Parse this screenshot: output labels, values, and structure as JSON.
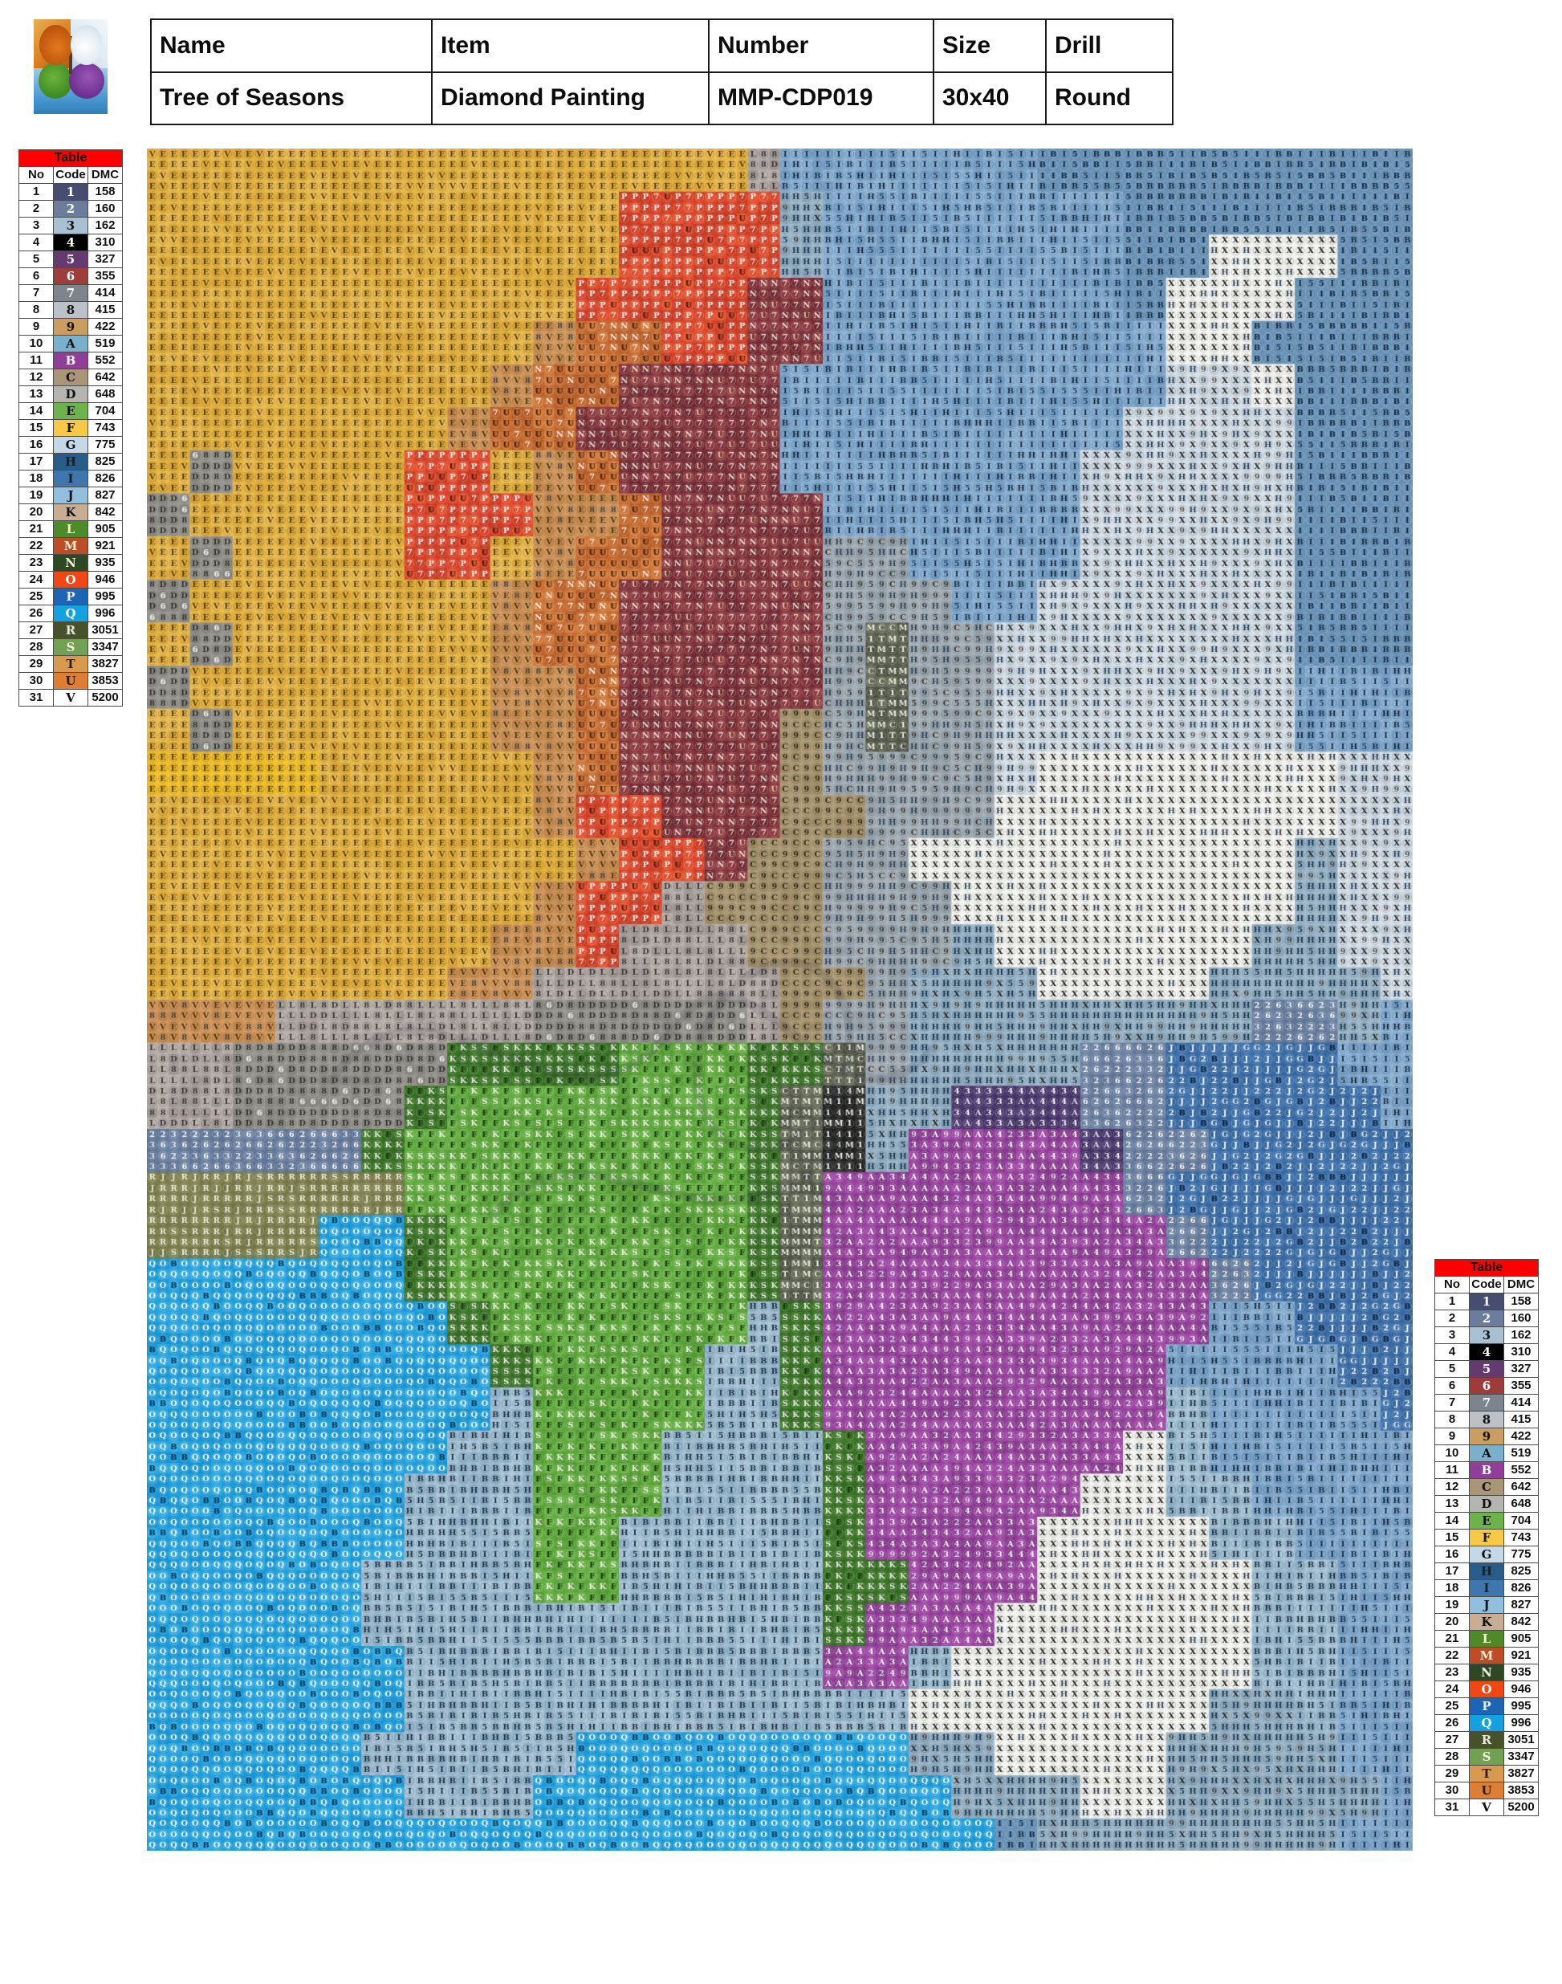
{
  "header": {
    "cells": [
      {
        "label": "Name",
        "value": "Tree of Seasons"
      },
      {
        "label": "Item",
        "value": "Diamond Painting"
      },
      {
        "label": "Number",
        "value": "MMP-CDP019"
      },
      {
        "label": "Size",
        "value": "30x40"
      },
      {
        "label": "Drill",
        "value": "Round"
      }
    ]
  },
  "thumbnail": {
    "description": "four-seasons tree photo thumbnail"
  },
  "legend": {
    "title": "Table",
    "columns": [
      "No",
      "Code",
      "DMC"
    ],
    "rows": [
      {
        "no": 1,
        "code": "1",
        "dmc": "158",
        "bg": "#474D70",
        "fg": "#ffffff"
      },
      {
        "no": 2,
        "code": "2",
        "dmc": "160",
        "bg": "#6C7C9D",
        "fg": "#ffffff"
      },
      {
        "no": 3,
        "code": "3",
        "dmc": "162",
        "bg": "#A9C0D4",
        "fg": "#111111"
      },
      {
        "no": 4,
        "code": "4",
        "dmc": "310",
        "bg": "#000000",
        "fg": "#ffffff"
      },
      {
        "no": 5,
        "code": "5",
        "dmc": "327",
        "bg": "#643A70",
        "fg": "#ffffff"
      },
      {
        "no": 6,
        "code": "6",
        "dmc": "355",
        "bg": "#9E3B3B",
        "fg": "#ffffff"
      },
      {
        "no": 7,
        "code": "7",
        "dmc": "414",
        "bg": "#7E848E",
        "fg": "#ffffff"
      },
      {
        "no": 8,
        "code": "8",
        "dmc": "415",
        "bg": "#BCC1C7",
        "fg": "#111111"
      },
      {
        "no": 9,
        "code": "9",
        "dmc": "422",
        "bg": "#CA9D60",
        "fg": "#111111"
      },
      {
        "no": 10,
        "code": "A",
        "dmc": "519",
        "bg": "#7BB0CD",
        "fg": "#111111"
      },
      {
        "no": 11,
        "code": "B",
        "dmc": "552",
        "bg": "#8F3F98",
        "fg": "#ffffff"
      },
      {
        "no": 12,
        "code": "C",
        "dmc": "642",
        "bg": "#A89677",
        "fg": "#111111"
      },
      {
        "no": 13,
        "code": "D",
        "dmc": "648",
        "bg": "#B4B5B0",
        "fg": "#111111"
      },
      {
        "no": 14,
        "code": "E",
        "dmc": "704",
        "bg": "#6DB34B",
        "fg": "#111111"
      },
      {
        "no": 15,
        "code": "F",
        "dmc": "743",
        "bg": "#F6CA46",
        "fg": "#111111"
      },
      {
        "no": 16,
        "code": "G",
        "dmc": "775",
        "bg": "#C5D8E8",
        "fg": "#111111"
      },
      {
        "no": 17,
        "code": "H",
        "dmc": "825",
        "bg": "#2A5C8A",
        "fg": "#15202b"
      },
      {
        "no": 18,
        "code": "I",
        "dmc": "826",
        "bg": "#3E76AD",
        "fg": "#15202b"
      },
      {
        "no": 19,
        "code": "J",
        "dmc": "827",
        "bg": "#92BFDE",
        "fg": "#111111"
      },
      {
        "no": 20,
        "code": "K",
        "dmc": "842",
        "bg": "#C9AD93",
        "fg": "#111111"
      },
      {
        "no": 21,
        "code": "L",
        "dmc": "905",
        "bg": "#4F8A2A",
        "fg": "#F5F0C8"
      },
      {
        "no": 22,
        "code": "M",
        "dmc": "921",
        "bg": "#BE4D27",
        "fg": "#F5E9D0"
      },
      {
        "no": 23,
        "code": "N",
        "dmc": "935",
        "bg": "#2F4824",
        "fg": "#EDEDE0"
      },
      {
        "no": 24,
        "code": "O",
        "dmc": "946",
        "bg": "#F04716",
        "fg": "#ffffff"
      },
      {
        "no": 25,
        "code": "P",
        "dmc": "995",
        "bg": "#1D64B5",
        "fg": "#EAF0F8"
      },
      {
        "no": 26,
        "code": "Q",
        "dmc": "996",
        "bg": "#14A1E0",
        "fg": "#ffffff"
      },
      {
        "no": 27,
        "code": "R",
        "dmc": "3051",
        "bg": "#47522D",
        "fg": "#E8E8D8"
      },
      {
        "no": 28,
        "code": "S",
        "dmc": "3347",
        "bg": "#73A154",
        "fg": "#F2F2DC"
      },
      {
        "no": 29,
        "code": "T",
        "dmc": "3827",
        "bg": "#D89A4E",
        "fg": "#2A1C08"
      },
      {
        "no": 30,
        "code": "U",
        "dmc": "3853",
        "bg": "#DE7E35",
        "fg": "#2A1C08"
      },
      {
        "no": 31,
        "code": "V",
        "dmc": "5200",
        "bg": "#FFFFFF",
        "fg": "#111111"
      }
    ]
  },
  "pattern": {
    "cols": 118,
    "rows": 158,
    "palette": {
      "Y": {
        "bg": [
          "#E5B544",
          "#DFAE3E",
          "#EABD54"
        ],
        "sym": [
          [
            "E",
            "#4A3208",
            6
          ],
          [
            "V",
            "#5A3A10",
            1
          ]
        ]
      },
      "y": {
        "bg": [
          "#D39A62",
          "#C98F55"
        ],
        "sym": [
          [
            "V",
            "#4A3208",
            3
          ],
          [
            "E",
            "#4A3208",
            1
          ],
          [
            "8",
            "#3A3A3A",
            1
          ]
        ]
      },
      "F": {
        "bg": [
          "#F2C333",
          "#EDBD2B"
        ],
        "sym": [
          [
            "E",
            "#4A3208",
            1
          ]
        ]
      },
      "O": {
        "bg": [
          "#C3682F",
          "#B85E28",
          "#CE7638"
        ],
        "sym": [
          [
            "U",
            "#3D2208",
            4
          ],
          [
            "N",
            "#FFF6E8",
            1
          ],
          [
            "7",
            "#FFF6E8",
            1
          ]
        ]
      },
      "r": {
        "bg": [
          "#D64228",
          "#C93A22",
          "#E04E2C"
        ],
        "sym": [
          [
            "P",
            "#FFFFFF",
            4
          ],
          [
            "U",
            "#3D2208",
            1
          ],
          [
            "7",
            "#FFF0E0",
            1
          ]
        ]
      },
      "R": {
        "bg": [
          "#7E3038",
          "#8A3A40",
          "#6F2A33"
        ],
        "sym": [
          [
            "7",
            "#F2E2D2",
            4
          ],
          [
            "N",
            "#F2E2D2",
            2
          ],
          [
            "U",
            "#E8C7A0",
            1
          ]
        ]
      },
      "W": {
        "bg": [
          "#F6F6F3",
          "#EFF0EC"
        ],
        "sym": [
          [
            "X",
            "#1A1A1A",
            6
          ],
          [
            "H",
            "#2C3E50",
            1
          ]
        ]
      },
      "w": {
        "bg": [
          "#D9E2EA",
          "#CDD9E3"
        ],
        "sym": [
          [
            "X",
            "#222222",
            3
          ],
          [
            "H",
            "#223A55",
            1
          ],
          [
            "9",
            "#55504A",
            1
          ]
        ]
      },
      "b": {
        "bg": [
          "#85ACCF",
          "#7BA3C8",
          "#8FB4D6"
        ],
        "sym": [
          [
            "I",
            "#12253D",
            5
          ],
          [
            "H",
            "#0D2036",
            1
          ],
          [
            "5",
            "#1A3A5C",
            1
          ],
          [
            "B",
            "#122A44",
            1
          ]
        ]
      },
      "B": {
        "bg": [
          "#7199BC",
          "#6790B5"
        ],
        "sym": [
          [
            "B",
            "#10263C",
            3
          ],
          [
            "I",
            "#10263C",
            3
          ],
          [
            "5",
            "#16304A",
            1
          ]
        ]
      },
      "J": {
        "bg": [
          "#3E70A9",
          "#35669E"
        ],
        "sym": [
          [
            "J",
            "#FFFFFF",
            3
          ],
          [
            "2",
            "#FFFFFF",
            2
          ],
          [
            "G",
            "#DCE8F2",
            1
          ],
          [
            "B",
            "#0D2240",
            1
          ]
        ]
      },
      "M": {
        "bg": [
          "#6B80A0",
          "#5F7494"
        ],
        "sym": [
          [
            "2",
            "#FFFFFF",
            3
          ],
          [
            "6",
            "#FFFFFF",
            2
          ],
          [
            "3",
            "#E8ECF4",
            1
          ]
        ]
      },
      "H": {
        "bg": [
          "#9FB9CB",
          "#92AEC2"
        ],
        "sym": [
          [
            "H",
            "#16304A",
            5
          ],
          [
            "9",
            "#44403A",
            1
          ],
          [
            "5",
            "#16304A",
            1
          ],
          [
            "X",
            "#222222",
            1
          ]
        ]
      },
      "T": {
        "bg": [
          "#A8B2BA",
          "#9BA7B0"
        ],
        "sym": [
          [
            "9",
            "#3A3A38",
            3
          ],
          [
            "H",
            "#2C3E50",
            2
          ],
          [
            "5",
            "#333333",
            1
          ],
          [
            "C",
            "#3A3020",
            1
          ]
        ]
      },
      "C": {
        "bg": [
          "#AF9D78",
          "#A5936E"
        ],
        "sym": [
          [
            "C",
            "#2E2616",
            3
          ],
          [
            "9",
            "#2E2616",
            3
          ]
        ]
      },
      "t": {
        "bg": [
          "#585C4B",
          "#4E5244",
          "#666A56"
        ],
        "sym": [
          [
            "M",
            "#EEEEE6",
            3
          ],
          [
            "T",
            "#EEEEE6",
            2
          ],
          [
            "1",
            "#FFFFFF",
            1
          ],
          [
            "C",
            "#DDDDD2",
            1
          ]
        ]
      },
      "K": {
        "bg": [
          "#2B2C29",
          "#1F201E"
        ],
        "sym": [
          [
            "1",
            "#FFFFFF",
            3
          ],
          [
            "M",
            "#F2F2EA",
            2
          ],
          [
            "4",
            "#DDDDDD",
            1
          ]
        ]
      },
      "L": {
        "bg": [
          "#B2A9A6",
          "#A89F9C",
          "#BCB3AE"
        ],
        "sym": [
          [
            "L",
            "#332C28",
            4
          ],
          [
            "8",
            "#333333",
            2
          ],
          [
            "D",
            "#333333",
            1
          ]
        ]
      },
      "D": {
        "bg": [
          "#9B9993",
          "#908E88"
        ],
        "sym": [
          [
            "D",
            "#2E2C28",
            4
          ],
          [
            "8",
            "#2E2C28",
            2
          ],
          [
            "6",
            "#EEEEEE",
            1
          ]
        ]
      },
      "G": {
        "bg": [
          "#5CA43A",
          "#549A33",
          "#65AD43"
        ],
        "sym": [
          [
            "F",
            "#143508",
            4
          ],
          [
            "K",
            "#F5F5E8",
            3
          ],
          [
            "S",
            "#F5F5E8",
            1
          ]
        ]
      },
      "g": {
        "bg": [
          "#3C7428",
          "#346A22"
        ],
        "sym": [
          [
            "K",
            "#EEF2E4",
            4
          ],
          [
            "S",
            "#EEF2E4",
            2
          ],
          [
            "F",
            "#143508",
            1
          ]
        ]
      },
      "o": {
        "bg": [
          "#7F8150",
          "#747646"
        ],
        "sym": [
          [
            "R",
            "#F2F2E0",
            4
          ],
          [
            "S",
            "#F2F2E0",
            1
          ],
          [
            "J",
            "#E8E8D8",
            1
          ]
        ]
      },
      "P": {
        "bg": [
          "#903E96",
          "#84388A",
          "#9C46A2"
        ],
        "sym": [
          [
            "A",
            "#FFFFFF",
            5
          ],
          [
            "3",
            "#FFFFFF",
            2
          ],
          [
            "4",
            "#FFFFFF",
            2
          ],
          [
            "2",
            "#D8E4F0",
            1
          ],
          [
            "9",
            "#E6D8E8",
            1
          ]
        ]
      },
      "p": {
        "bg": [
          "#4C3A6E",
          "#433264"
        ],
        "sym": [
          [
            "3",
            "#FFFFFF",
            3
          ],
          [
            "4",
            "#FFFFFF",
            2
          ],
          [
            "A",
            "#E8E4F0",
            1
          ]
        ]
      },
      "A": {
        "bg": [
          "#A2BFD3",
          "#97B7CD",
          "#ACC8DA"
        ],
        "sym": [
          [
            "B",
            "#14283C",
            3
          ],
          [
            "I",
            "#14283C",
            3
          ],
          [
            "5",
            "#14283C",
            1
          ],
          [
            "H",
            "#14283C",
            1
          ]
        ]
      },
      "Q": {
        "bg": [
          "#1F9DDA",
          "#1794D2",
          "#2BA6E0"
        ],
        "sym": [
          [
            "O",
            "#FFFFFF",
            4
          ],
          [
            "Q",
            "#FFFFFF",
            3
          ],
          [
            "B",
            "#0D3550",
            1
          ]
        ]
      }
    },
    "map": [
      "YYYYYYYYYYYYYYLbbbbbbBBBBBBBBB",
      "YYYYYYYYYYYrrrrHbbbbbbbBBBBBBB",
      "YYYYYYYYYYYrrrrHbbbbbbbBBWWWBB",
      "YYYYYYYYYYrrrrRRbbbbbbbBWWWBBB",
      "YYYYYYYYYyOOrrRRbbbbbbbbWWBBBB",
      "YYYYYYYYyOORRRRbbbbbbbbbwwWBBB",
      "YYYYYYYyOORRRRRbbbbbbbbwwwwBBB",
      "YDYYYYrrYyORRRRbbbbbbbwwwwwBBB",
      "DYYYYYrrryyORRRRbbbbbbwwwwwBBB",
      "YDYYYYrrYyOORRRRTTbbbbwwwwwBBB",
      "DYYYYYYYyOORRRRRTTTbbwwwwwwBBB",
      "YDYYYYYYyOORRRRRTtTTwwwwwwwBBB",
      "DYYYYYYYyyORRRRRTtTTwwwwwwwbbb",
      "YDYYYYYYyyORRRRCTtTTwwwwwwwbbb",
      "FFFFYYYYYyORRRRCTTTTwWWWWWWWww",
      "YYYYYYYYYyrrRRRCCTTTWWWWWWWWww",
      "YYYYYYYYYYyrrRCCTTWWWWWWWWWHww",
      "YYYYYYYYYyrrLCCCTTTWWWWWWWWHww",
      "YYYYYYYYyyrLLLCCTTTHWWWWWWHHww",
      "YYYYYYYyyLLLLLLCCTHHHWWWWHHHHw",
      "yyyLLLLLLDDDDDLCTTHHHHHHHHMMHb",
      "LLDDDDDggggGGGggtTHHHHMMJJJJbb",
      "LLDDDDgGGGGGGGgtKHHpppMMJJJJJb",
      "MMMMMgGGGGGGGGgtKHPPPPpMMJJJJJ",
      "ooooooGGGGGGGGgtPPPPPPPMJJJJJJ",
      "ooooQQgGGGGGGGgtPPPPPPPPMJJJJJ",
      "QQQQQQgGGGGGGGgtPPPPPPPPPMJJJJ",
      "QQQQQQQgGGGGGGAgPPPPPPPPPbbJJJ",
      "QQQQQQQQgGGGGAAgPPPPPPPPbbbbJJ",
      "QQQQQQQQAGGGGAAgPPPPPPPPAbbbbJ",
      "QQQQQQQAAGGGAAAAgPPPPPPWAbbbbb",
      "QQQQQQAAAGGGAAAAgPPPPPWWAAbbbb",
      "QQQQQQAAAGGAAAAAgPPPPWWWWAAbbb",
      "QQQQQAAAAGGAAAAAggPPPWWWWWAAbb",
      "QQQQQAAAAAAAAAAAgPPPWWWWWWAAbb",
      "QQQQQQAAAAAAAAAAPPAWWWWWWWAAbb",
      "QQQQQQAAAAAAAAAAAAWWWWWWWHHAbb",
      "QQQQQAAAAAQQQQQQQQHHWWWWHHHHbb",
      "QQQQQQAAAQQQQQQQQQQHHHWWHHHHHb",
      "QQQQQQQQQQQQQQQQQQQQBHHHHHHHbb"
    ]
  }
}
